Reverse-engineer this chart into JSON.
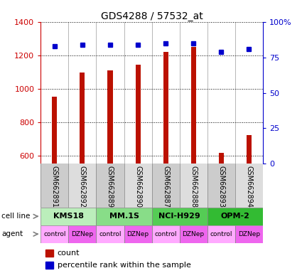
{
  "title": "GDS4288 / 57532_at",
  "samples": [
    "GSM662891",
    "GSM662892",
    "GSM662889",
    "GSM662890",
    "GSM662887",
    "GSM662888",
    "GSM662893",
    "GSM662894"
  ],
  "counts": [
    950,
    1095,
    1110,
    1145,
    1220,
    1250,
    615,
    720
  ],
  "percentile_ranks": [
    83,
    84,
    84,
    84,
    85,
    85,
    79,
    81
  ],
  "cell_lines": [
    {
      "label": "KMS18",
      "start": 0,
      "end": 2,
      "color": "#bbeebb"
    },
    {
      "label": "MM.1S",
      "start": 2,
      "end": 4,
      "color": "#88dd88"
    },
    {
      "label": "NCI-H929",
      "start": 4,
      "end": 6,
      "color": "#55cc55"
    },
    {
      "label": "OPM-2",
      "start": 6,
      "end": 8,
      "color": "#33bb33"
    }
  ],
  "agents": [
    "control",
    "DZNep",
    "control",
    "DZNep",
    "control",
    "DZNep",
    "control",
    "DZNep"
  ],
  "agent_color_control": "#ffaaff",
  "agent_color_dzNep": "#ee66ee",
  "bar_color": "#bb1100",
  "dot_color": "#0000cc",
  "ylim_left": [
    550,
    1400
  ],
  "yticks_left": [
    600,
    800,
    1000,
    1200,
    1400
  ],
  "ylim_right": [
    0,
    100
  ],
  "yticks_right": [
    0,
    25,
    50,
    75,
    100
  ],
  "yticklabels_right": [
    "0",
    "25",
    "50",
    "75",
    "100%"
  ],
  "label_color_left": "#cc0000",
  "label_color_right": "#0000cc",
  "bar_width": 0.18
}
